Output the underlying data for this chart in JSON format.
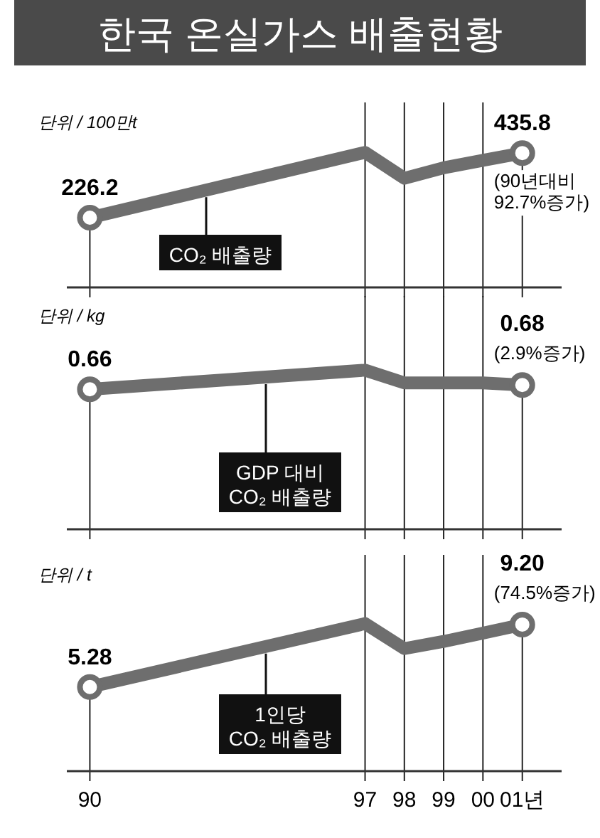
{
  "chart_data": [
    {
      "type": "line",
      "title": "한국 온실가스 배출현황",
      "ylabel": "단위 / 100만t",
      "x": [
        "1990",
        "1997",
        "1998",
        "1999",
        "2000",
        "2001"
      ],
      "xlim": [
        "1989-06",
        "2002"
      ],
      "xticks": [
        {
          "value": "1990",
          "label": null
        },
        {
          "value": "1997",
          "label": null
        },
        {
          "value": "1998",
          "label": null
        },
        {
          "value": "1999",
          "label": null
        },
        {
          "value": "2000",
          "label": null
        },
        {
          "value": "2001",
          "label": null
        }
      ],
      "ylim": [
        0,
        600
      ],
      "tick_labels": false,
      "grid": "x",
      "line_style": "solid",
      "series": [
        {
          "name": "CO₂ 배출량",
          "color": "#6e6e6e",
          "values": [
            226.2,
            438,
            354,
            388,
            412,
            435.8
          ],
          "value_labels": [
            "226.2",
            null,
            null,
            null,
            null,
            "435.8"
          ]
        }
      ],
      "annotations": [
        {
          "text": "(90년대비 92.7%증가)",
          "x": "2001",
          "y": 435.8
        }
      ]
    },
    {
      "type": "line",
      "ylabel": "단위 / kg",
      "x": [
        "1990",
        "1997",
        "1998",
        "1999",
        "2000",
        "2001"
      ],
      "xlim": [
        "1989-06",
        "2002"
      ],
      "xticks": [
        {
          "value": "1990",
          "label": null
        },
        {
          "value": "1997",
          "label": null
        },
        {
          "value": "1998",
          "label": null
        },
        {
          "value": "1999",
          "label": null
        },
        {
          "value": "2000",
          "label": null
        },
        {
          "value": "2001",
          "label": null
        }
      ],
      "ylim": [
        0,
        1.1
      ],
      "tick_labels": false,
      "grid": "x",
      "line_style": "solid",
      "series": [
        {
          "name": "GDP 대비\nCO₂ 배출량",
          "color": "#6e6e6e",
          "values": [
            0.66,
            0.75,
            0.69,
            0.69,
            0.69,
            0.68
          ],
          "value_labels": [
            "0.66",
            null,
            null,
            null,
            null,
            "0.68"
          ]
        }
      ],
      "annotations": [
        {
          "text": "(2.9%증가)",
          "x": "2001",
          "y": 0.68
        }
      ]
    },
    {
      "type": "line",
      "ylabel": "단위 / t",
      "x": [
        "1990",
        "1997",
        "1998",
        "1999",
        "2000",
        "2001"
      ],
      "xlim": [
        "1989-06",
        "2002"
      ],
      "xticks": [
        {
          "value": "1990",
          "label": "90"
        },
        {
          "value": "1997",
          "label": "97"
        },
        {
          "value": "1998",
          "label": "98"
        },
        {
          "value": "1999",
          "label": "99"
        },
        {
          "value": "2000",
          "label": "00"
        },
        {
          "value": "2001",
          "label": "01년"
        }
      ],
      "tick_labels": "x",
      "grid": "x",
      "line_style": "solid",
      "series": [
        {
          "name": "1인당\nCO₂ 배출량",
          "color": "#6e6e6e",
          "values": [
            5.28,
            9.26,
            7.69,
            8.14,
            8.66,
            9.2
          ],
          "value_labels": [
            "5.28",
            null,
            null,
            null,
            null,
            "9.20"
          ]
        }
      ],
      "annotations": [
        {
          "text": "(74.5%증가)",
          "x": "2001",
          "y": 9.2
        }
      ]
    }
  ]
}
